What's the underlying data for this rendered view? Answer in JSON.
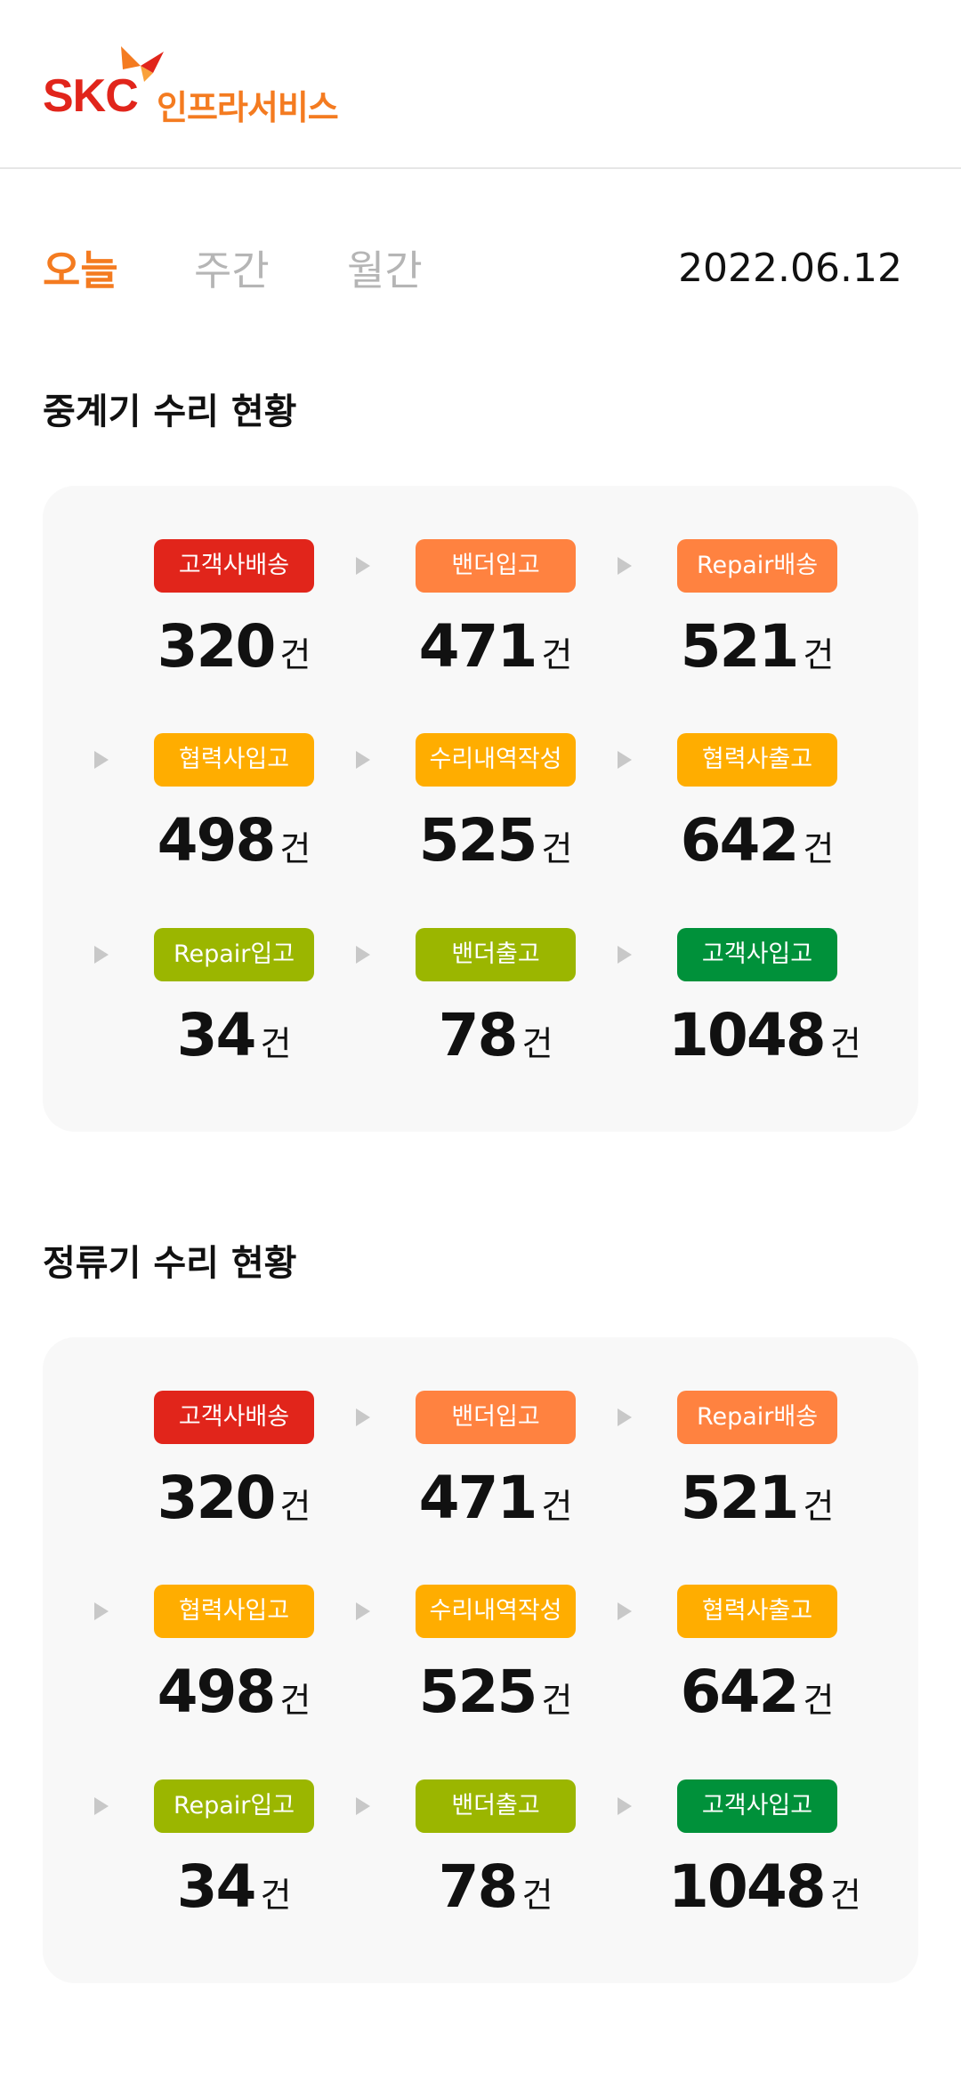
{
  "header": {
    "logo_brand": "SKC",
    "logo_sub": "인프라서비스"
  },
  "tabs": [
    {
      "label": "오늘",
      "active": true
    },
    {
      "label": "주간",
      "active": false
    },
    {
      "label": "월간",
      "active": false
    }
  ],
  "date": "2022.06.12",
  "colors": {
    "red": "#e1251b",
    "orange": "#ff8240",
    "amber": "#ffad00",
    "lime": "#9bb600",
    "green": "#00913a",
    "accent": "#f47b20"
  },
  "sections": [
    {
      "title": "중계기 수리 현황",
      "items": [
        {
          "label": "고객사배송",
          "count": "320",
          "unit": "건",
          "color": "#e1251b"
        },
        {
          "label": "밴더입고",
          "count": "471",
          "unit": "건",
          "color": "#ff8240"
        },
        {
          "label": "Repair배송",
          "count": "521",
          "unit": "건",
          "color": "#ff8240"
        },
        {
          "label": "협력사입고",
          "count": "498",
          "unit": "건",
          "color": "#ffad00"
        },
        {
          "label": "수리내역작성",
          "count": "525",
          "unit": "건",
          "color": "#ffad00"
        },
        {
          "label": "협력사출고",
          "count": "642",
          "unit": "건",
          "color": "#ffad00"
        },
        {
          "label": "Repair입고",
          "count": "34",
          "unit": "건",
          "color": "#9bb600"
        },
        {
          "label": "밴더출고",
          "count": "78",
          "unit": "건",
          "color": "#9bb600"
        },
        {
          "label": "고객사입고",
          "count": "1048",
          "unit": "건",
          "color": "#00913a"
        }
      ]
    },
    {
      "title": "정류기 수리 현황",
      "items": [
        {
          "label": "고객사배송",
          "count": "320",
          "unit": "건",
          "color": "#e1251b"
        },
        {
          "label": "밴더입고",
          "count": "471",
          "unit": "건",
          "color": "#ff8240"
        },
        {
          "label": "Repair배송",
          "count": "521",
          "unit": "건",
          "color": "#ff8240"
        },
        {
          "label": "협력사입고",
          "count": "498",
          "unit": "건",
          "color": "#ffad00"
        },
        {
          "label": "수리내역작성",
          "count": "525",
          "unit": "건",
          "color": "#ffad00"
        },
        {
          "label": "협력사출고",
          "count": "642",
          "unit": "건",
          "color": "#ffad00"
        },
        {
          "label": "Repair입고",
          "count": "34",
          "unit": "건",
          "color": "#9bb600"
        },
        {
          "label": "밴더출고",
          "count": "78",
          "unit": "건",
          "color": "#9bb600"
        },
        {
          "label": "고객사입고",
          "count": "1048",
          "unit": "건",
          "color": "#00913a"
        }
      ]
    }
  ]
}
